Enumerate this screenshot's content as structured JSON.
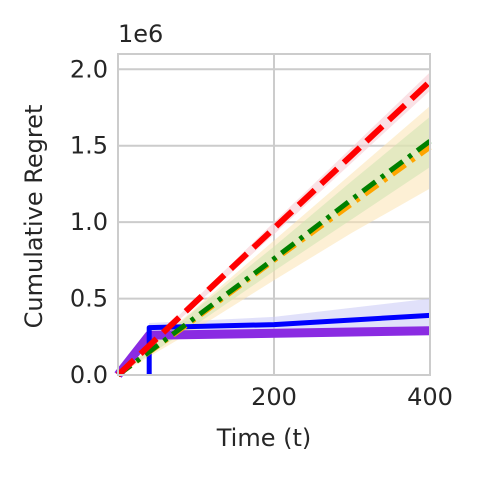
{
  "chart_data": {
    "type": "line",
    "title": "",
    "xlabel": "Time (t)",
    "ylabel": "Cumulative Regret",
    "y_offset_label": "1e6",
    "xlim": [
      0,
      400
    ],
    "ylim": [
      0,
      2.1
    ],
    "x_ticks": [
      200,
      400
    ],
    "x_tick_labels": [
      "200",
      "400"
    ],
    "y_ticks": [
      0,
      0.5,
      1.0,
      1.5,
      2.0
    ],
    "y_tick_labels": [
      "0.0",
      "0.5",
      "1.0",
      "1.5",
      "2.0"
    ],
    "grid": true,
    "series": [
      {
        "color": "#e5e5ff",
        "band_color": "#e8ccf0",
        "line_color": "#8a2be2",
        "style": "solid",
        "x": [
          0,
          40,
          400
        ],
        "y": [
          0,
          0.26,
          0.29
        ],
        "band_low": [
          0,
          0.24,
          0.27
        ],
        "band_high": [
          0,
          0.28,
          0.31
        ]
      },
      {
        "band_color": "#c8c8f5",
        "line_color": "#0000ff",
        "style": "solid",
        "x": [
          40,
          40,
          200,
          400
        ],
        "y": [
          0,
          0.31,
          0.33,
          0.39
        ],
        "band_low": [
          0.28,
          0.28,
          0.29,
          0.3
        ],
        "band_high": [
          0.34,
          0.34,
          0.38,
          0.5
        ]
      },
      {
        "band_color": "#fbe3b3",
        "line_color": "#ffa500",
        "style": "dashdot",
        "x": [
          0,
          100,
          200,
          300,
          400
        ],
        "y": [
          0,
          0.37,
          0.75,
          1.12,
          1.49
        ],
        "band_low": [
          0,
          0.3,
          0.62,
          0.93,
          1.22
        ],
        "band_high": [
          0,
          0.44,
          0.88,
          1.32,
          1.76
        ]
      },
      {
        "band_color": "#d0e4b0",
        "line_color": "#008000",
        "style": "dashdot",
        "x": [
          0,
          100,
          200,
          300,
          400
        ],
        "y": [
          0,
          0.38,
          0.76,
          1.15,
          1.53
        ],
        "band_low": [
          0,
          0.33,
          0.68,
          1.02,
          1.36
        ],
        "band_high": [
          0,
          0.43,
          0.84,
          1.27,
          1.69
        ]
      },
      {
        "band_color": "#f5c8d0",
        "line_color": "#ff0000",
        "style": "dashed",
        "x": [
          0,
          100,
          200,
          300,
          400
        ],
        "y": [
          0,
          0.48,
          0.96,
          1.44,
          1.92
        ],
        "band_low": [
          0,
          0.46,
          0.92,
          1.39,
          1.86
        ],
        "band_high": [
          0,
          0.5,
          1.0,
          1.49,
          1.98
        ]
      }
    ]
  }
}
